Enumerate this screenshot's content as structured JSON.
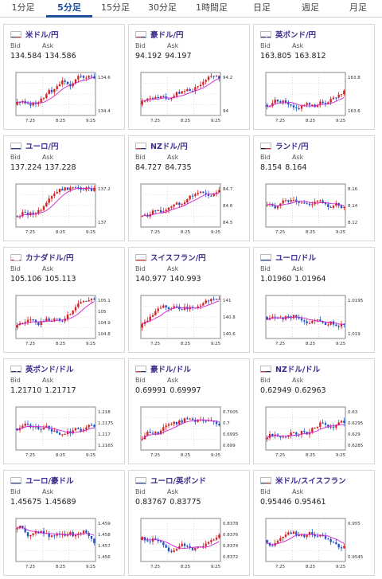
{
  "tabs": [
    {
      "label": "1分足",
      "active": false
    },
    {
      "label": "5分足",
      "active": true
    },
    {
      "label": "15分足",
      "active": false
    },
    {
      "label": "30分足",
      "active": false
    },
    {
      "label": "1時間足",
      "active": false
    },
    {
      "label": "日足",
      "active": false
    },
    {
      "label": "週足",
      "active": false
    },
    {
      "label": "月足",
      "active": false
    }
  ],
  "bid_label": "Bid",
  "ask_label": "Ask",
  "time_labels": [
    "7:25",
    "8:25",
    "9:25"
  ],
  "pairs": [
    {
      "name": "米ドル/円",
      "flag": "us",
      "bid": "134.584",
      "ask": "134.586",
      "y_ticks": [
        "134.6",
        "134.4"
      ],
      "trend": "up"
    },
    {
      "name": "豪ドル/円",
      "flag": "au",
      "bid": "94.192",
      "ask": "94.197",
      "y_ticks": [
        "94.2",
        "94"
      ],
      "trend": "up"
    },
    {
      "name": "英ポンド/円",
      "flag": "gb",
      "bid": "163.805",
      "ask": "163.812",
      "y_ticks": [
        "163.8",
        "163.6"
      ],
      "trend": "up"
    },
    {
      "name": "ユーロ/円",
      "flag": "eu",
      "bid": "137.224",
      "ask": "137.228",
      "y_ticks": [
        "137.2",
        "137"
      ],
      "trend": "up"
    },
    {
      "name": "NZドル/円",
      "flag": "nz",
      "bid": "84.727",
      "ask": "84.735",
      "y_ticks": [
        "84.7",
        "84.6",
        "84.5"
      ],
      "trend": "up"
    },
    {
      "name": "ランド/円",
      "flag": "za",
      "bid": "8.154",
      "ask": "8.164",
      "y_ticks": [
        "8.16",
        "8.14",
        "8.12"
      ],
      "trend": "flat"
    },
    {
      "name": "カナダドル/円",
      "flag": "ca",
      "bid": "105.106",
      "ask": "105.113",
      "y_ticks": [
        "105.1",
        "105",
        "104.9",
        "104.8"
      ],
      "trend": "up"
    },
    {
      "name": "スイスフラン/円",
      "flag": "ch",
      "bid": "140.977",
      "ask": "140.993",
      "y_ticks": [
        "141",
        "140.8",
        "140.6"
      ],
      "trend": "up"
    },
    {
      "name": "ユーロ/ドル",
      "flag": "eu",
      "bid": "1.01960",
      "ask": "1.01964",
      "y_ticks": [
        "1.0195",
        "1.019"
      ],
      "trend": "flat"
    },
    {
      "name": "英ポンド/ドル",
      "flag": "gb",
      "bid": "1.21710",
      "ask": "1.21717",
      "y_ticks": [
        "1.218",
        "1.2175",
        "1.217",
        "1.2165"
      ],
      "trend": "flat"
    },
    {
      "name": "豪ドル/ドル",
      "flag": "au",
      "bid": "0.69991",
      "ask": "0.69997",
      "y_ticks": [
        "0.7005",
        "0.7",
        "0.6995",
        "0.699"
      ],
      "trend": "up"
    },
    {
      "name": "NZドル/ドル",
      "flag": "nz",
      "bid": "0.62949",
      "ask": "0.62963",
      "y_ticks": [
        "0.63",
        "0.6295",
        "0.629",
        "0.6285"
      ],
      "trend": "up"
    },
    {
      "name": "ユーロ/豪ドル",
      "flag": "eu",
      "bid": "1.45675",
      "ask": "1.45689",
      "y_ticks": [
        "1.459",
        "1.458",
        "1.457",
        "1.456"
      ],
      "trend": "down"
    },
    {
      "name": "ユーロ/英ポンド",
      "flag": "eu",
      "bid": "0.83767",
      "ask": "0.83775",
      "y_ticks": [
        "0.8378",
        "0.8376",
        "0.8374",
        "0.8372"
      ],
      "trend": "flat"
    },
    {
      "name": "米ドル/スイスフラン",
      "flag": "us",
      "bid": "0.95446",
      "ask": "0.95461",
      "y_ticks": [
        "0.955",
        "0.9545"
      ],
      "trend": "flat"
    }
  ],
  "colors": {
    "up": "#d62020",
    "down": "#2050c8",
    "ma": "#d020d0",
    "grid": "#c8c8c8",
    "accent": "#1a4fa0"
  }
}
